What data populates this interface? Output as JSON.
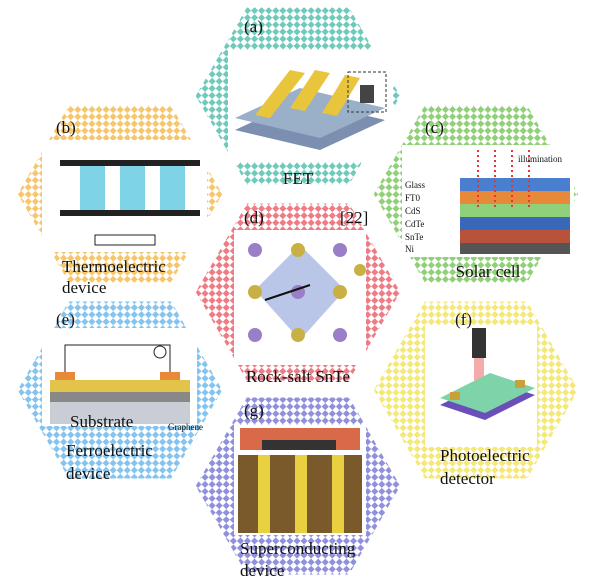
{
  "panels": [
    {
      "label": "(a)",
      "caption": [
        "FET"
      ]
    },
    {
      "label": "(b)",
      "caption": [
        "Thermoelectric",
        "device"
      ]
    },
    {
      "label": "(c)",
      "caption": [
        "Solar cell"
      ],
      "layers": [
        "Glass",
        "FT0",
        "CdS",
        "CdTe",
        "SnTe",
        "Ni"
      ],
      "note": "illumination"
    },
    {
      "label": "(d)",
      "caption": [
        "Rock-salt SnTe"
      ],
      "citation": "[22]"
    },
    {
      "label": "(e)",
      "caption": [
        "Ferroelectric",
        "device"
      ],
      "inner": [
        "Substrate",
        "Graphene"
      ]
    },
    {
      "label": "(f)",
      "caption": [
        "Photoelectric",
        "detector"
      ]
    },
    {
      "label": "(g)",
      "caption": [
        "Superconducting",
        "device"
      ]
    }
  ]
}
